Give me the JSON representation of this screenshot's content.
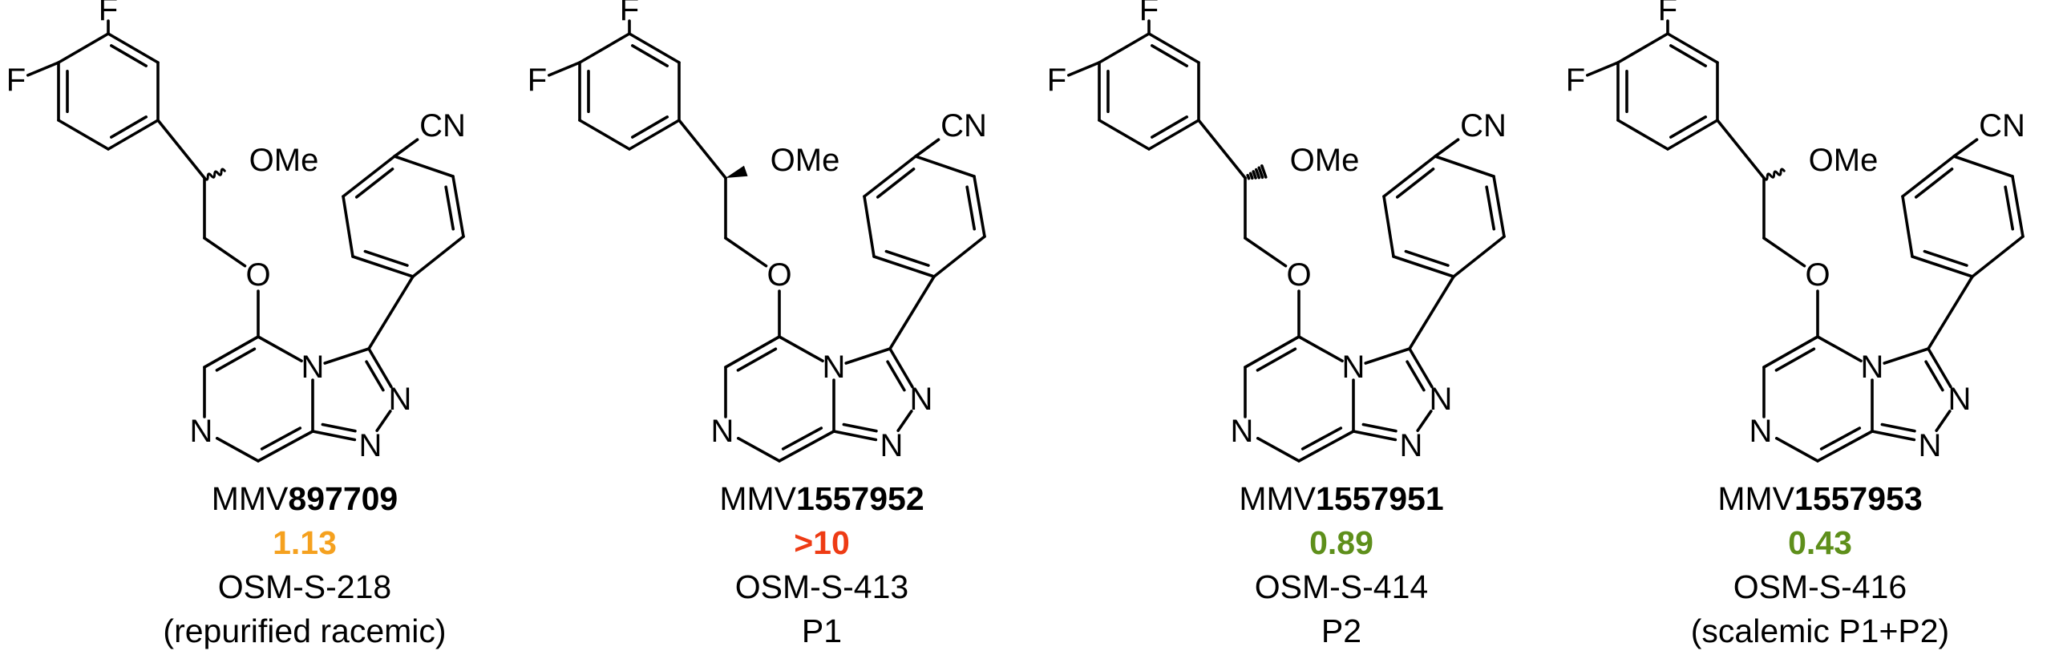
{
  "compounds": [
    {
      "stereo": "wavy",
      "id_prefix": "MMV",
      "id_number": "897709",
      "ic50": "1.13",
      "ic50_color": "#F5A11F",
      "osm": "OSM-S-218",
      "note": "(repurified racemic)"
    },
    {
      "stereo": "wedge",
      "id_prefix": "MMV",
      "id_number": "1557952",
      "ic50": ">10",
      "ic50_color": "#EE3B14",
      "osm": "OSM-S-413",
      "note": "P1"
    },
    {
      "stereo": "hash",
      "id_prefix": "MMV",
      "id_number": "1557951",
      "ic50": "0.89",
      "ic50_color": "#5E8F1B",
      "osm": "OSM-S-414",
      "note": "P2"
    },
    {
      "stereo": "wavy",
      "id_prefix": "MMV",
      "id_number": "1557953",
      "ic50": "0.43",
      "ic50_color": "#5E8F1B",
      "osm": "OSM-S-416",
      "note": "(scalemic P1+P2)"
    }
  ],
  "atom_labels": {
    "fluorine": "F",
    "methoxy": "OMe",
    "oxygen": "O",
    "nitrogen": "N",
    "nitrile": "CN"
  }
}
